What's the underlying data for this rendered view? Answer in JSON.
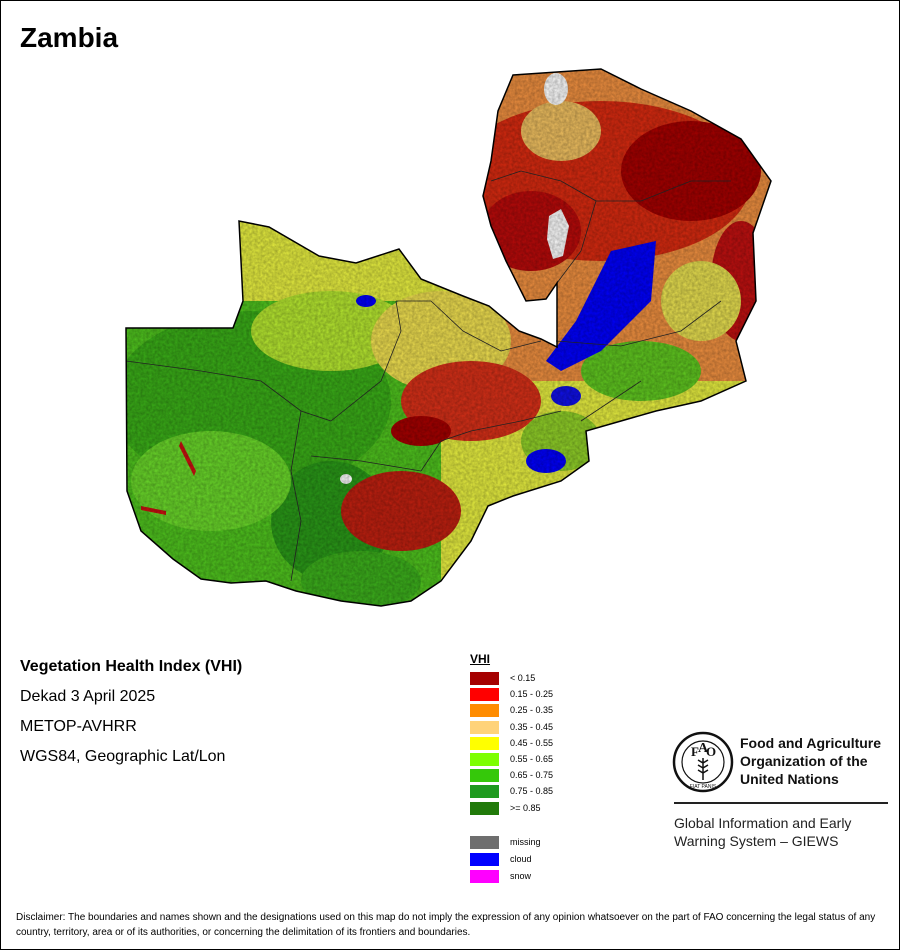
{
  "map": {
    "title": "Zambia",
    "country_fill_colors": [
      "#2e9e1e",
      "#55d016",
      "#ffff00",
      "#ffd37a",
      "#ff8c00",
      "#ff0000",
      "#a50000",
      "#0000ff"
    ]
  },
  "info": {
    "product": "Vegetation Health Index (VHI)",
    "dekad": "Dekad 3 April 2025",
    "sensor": "METOP-AVHRR",
    "projection": "WGS84, Geographic Lat/Lon"
  },
  "legend": {
    "title": "VHI",
    "classes": [
      {
        "label": "< 0.15",
        "color": "#a50000"
      },
      {
        "label": "0.15 - 0.25",
        "color": "#ff0000"
      },
      {
        "label": "0.25 - 0.35",
        "color": "#ff8c00"
      },
      {
        "label": "0.35 - 0.45",
        "color": "#ffd37a"
      },
      {
        "label": "0.45 - 0.55",
        "color": "#ffff00"
      },
      {
        "label": "0.55 - 0.65",
        "color": "#7dff00"
      },
      {
        "label": "0.65 - 0.75",
        "color": "#35c80a"
      },
      {
        "label": "0.75 - 0.85",
        "color": "#1e9a1e"
      },
      {
        "label": ">= 0.85",
        "color": "#217a0a"
      }
    ],
    "special": [
      {
        "label": "missing",
        "color": "#6e6e6e"
      },
      {
        "label": "cloud",
        "color": "#0000ff"
      },
      {
        "label": "snow",
        "color": "#ff00ff"
      }
    ]
  },
  "organization": {
    "name_line1": "Food and Agriculture",
    "name_line2": "Organization of the",
    "name_line3": "United Nations",
    "logo_icon": "fao-logo-icon",
    "logo_text": "FIAT PANIS",
    "system_line1": "Global Information and Early",
    "system_line2": "Warning System – GIEWS"
  },
  "disclaimer": "Disclaimer: The boundaries and names shown and the designations used on this map do not imply the expression of any opinion whatsoever on the part of FAO concerning the legal status of any country, territory, area or of its authorities, or concerning the delimitation of its frontiers and boundaries."
}
